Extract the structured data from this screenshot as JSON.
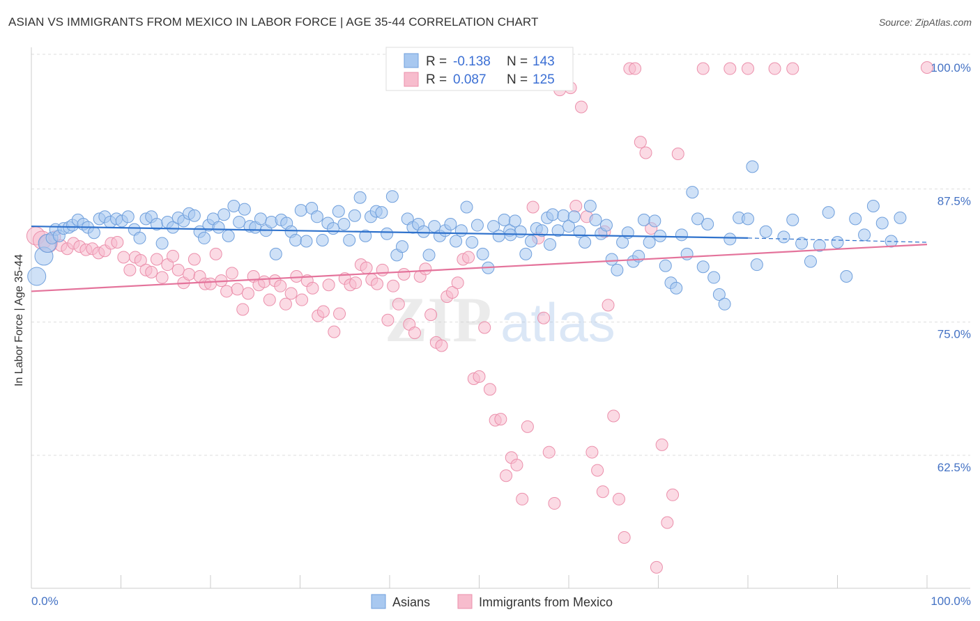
{
  "title": "ASIAN VS IMMIGRANTS FROM MEXICO IN LABOR FORCE | AGE 35-44 CORRELATION CHART",
  "source": "Source: ZipAtlas.com",
  "colors": {
    "asian_fill": "#a8c8f0",
    "asian_stroke": "#6f9fdc",
    "asian_line": "#2f72cc",
    "mexico_fill": "#f7bccd",
    "mexico_stroke": "#eb8fab",
    "mexico_line": "#e4739b",
    "axis_label": "#4472c4",
    "grid": "#dddddd"
  },
  "legend": {
    "r_label": "R =",
    "n_label": "N =",
    "rows": [
      {
        "r": "-0.138",
        "n": "143",
        "series": "asians"
      },
      {
        "r": "0.087",
        "n": "125",
        "series": "mexico"
      }
    ]
  },
  "bottom_legend": [
    "Asians",
    "Immigrants from Mexico"
  ],
  "chart_data": {
    "type": "scatter",
    "title": "ASIAN VS IMMIGRANTS FROM MEXICO IN LABOR FORCE | AGE 35-44 CORRELATION CHART",
    "xlabel": "",
    "ylabel": "In Labor Force | Age 35-44",
    "x_tick_labels": [
      "0.0%",
      "100.0%"
    ],
    "y_tick_labels": [
      "100.0%",
      "87.5%",
      "75.0%",
      "62.5%"
    ],
    "y_ticks": [
      100.0,
      87.5,
      75.0,
      62.5
    ],
    "xlim": [
      0,
      100
    ],
    "ylim": [
      52.5,
      101.5
    ],
    "grid": true,
    "legend_position": "top-center",
    "series": [
      {
        "name": "Asians",
        "r": -0.138,
        "n": 143,
        "trend": {
          "x": [
            0,
            80
          ],
          "y": [
            85.1,
            84.0
          ],
          "dashed_to": [
            100,
            83.6
          ]
        },
        "points": [
          [
            0.6,
            80.4
          ],
          [
            1.4,
            82.3
          ],
          [
            1.8,
            83.5
          ],
          [
            2.3,
            84.0
          ],
          [
            2.7,
            84.8
          ],
          [
            3.1,
            84.2
          ],
          [
            3.6,
            84.9
          ],
          [
            4.2,
            85.0
          ],
          [
            4.6,
            85.2
          ],
          [
            5.2,
            85.7
          ],
          [
            5.8,
            85.3
          ],
          [
            6.3,
            85.0
          ],
          [
            7.0,
            84.5
          ],
          [
            7.6,
            85.8
          ],
          [
            8.2,
            86.0
          ],
          [
            8.8,
            85.5
          ],
          [
            9.5,
            85.8
          ],
          [
            10.1,
            85.6
          ],
          [
            10.8,
            86.0
          ],
          [
            11.5,
            84.8
          ],
          [
            12.1,
            84.0
          ],
          [
            12.8,
            85.8
          ],
          [
            13.4,
            86.0
          ],
          [
            14.0,
            85.3
          ],
          [
            14.6,
            83.5
          ],
          [
            15.2,
            85.5
          ],
          [
            15.8,
            85.0
          ],
          [
            16.4,
            85.9
          ],
          [
            17.0,
            85.6
          ],
          [
            17.6,
            86.3
          ],
          [
            18.2,
            86.1
          ],
          [
            18.8,
            84.6
          ],
          [
            19.3,
            84.0
          ],
          [
            19.8,
            85.2
          ],
          [
            20.3,
            85.8
          ],
          [
            20.9,
            85.0
          ],
          [
            21.5,
            86.2
          ],
          [
            22.0,
            84.2
          ],
          [
            22.6,
            87.0
          ],
          [
            23.2,
            85.5
          ],
          [
            23.8,
            86.7
          ],
          [
            24.4,
            85.1
          ],
          [
            25.0,
            85.0
          ],
          [
            25.6,
            85.8
          ],
          [
            26.2,
            84.7
          ],
          [
            26.8,
            85.5
          ],
          [
            27.3,
            82.5
          ],
          [
            27.9,
            85.7
          ],
          [
            28.5,
            85.4
          ],
          [
            29.0,
            84.6
          ],
          [
            29.5,
            83.8
          ],
          [
            30.1,
            86.6
          ],
          [
            30.7,
            83.7
          ],
          [
            31.3,
            86.8
          ],
          [
            31.9,
            86.0
          ],
          [
            32.5,
            83.8
          ],
          [
            33.1,
            85.4
          ],
          [
            33.7,
            84.9
          ],
          [
            34.3,
            86.5
          ],
          [
            34.9,
            85.3
          ],
          [
            35.5,
            83.8
          ],
          [
            36.1,
            86.1
          ],
          [
            36.7,
            87.8
          ],
          [
            37.3,
            84.2
          ],
          [
            37.9,
            86.0
          ],
          [
            38.5,
            86.5
          ],
          [
            39.1,
            86.4
          ],
          [
            39.7,
            84.4
          ],
          [
            40.3,
            87.9
          ],
          [
            40.8,
            82.4
          ],
          [
            41.4,
            83.2
          ],
          [
            42.0,
            85.8
          ],
          [
            42.6,
            85.0
          ],
          [
            43.2,
            85.3
          ],
          [
            43.8,
            84.6
          ],
          [
            44.4,
            82.4
          ],
          [
            45.0,
            85.1
          ],
          [
            45.6,
            84.2
          ],
          [
            46.2,
            84.7
          ],
          [
            46.8,
            85.3
          ],
          [
            47.4,
            83.7
          ],
          [
            48.0,
            84.7
          ],
          [
            48.6,
            86.9
          ],
          [
            49.2,
            83.6
          ],
          [
            49.8,
            85.2
          ],
          [
            50.4,
            82.5
          ],
          [
            51.0,
            81.2
          ],
          [
            51.6,
            85.1
          ],
          [
            52.2,
            84.2
          ],
          [
            52.8,
            85.7
          ],
          [
            53.4,
            84.7
          ],
          [
            54.0,
            85.6
          ],
          [
            54.6,
            84.6
          ],
          [
            55.2,
            82.5
          ],
          [
            55.8,
            83.7
          ],
          [
            56.4,
            84.9
          ],
          [
            57.0,
            84.7
          ],
          [
            57.6,
            85.9
          ],
          [
            58.2,
            86.2
          ],
          [
            58.8,
            84.7
          ],
          [
            59.4,
            86.1
          ],
          [
            60.0,
            85.1
          ],
          [
            60.6,
            86.0
          ],
          [
            61.2,
            84.6
          ],
          [
            61.8,
            83.6
          ],
          [
            62.4,
            87.0
          ],
          [
            63.0,
            85.7
          ],
          [
            63.6,
            84.4
          ],
          [
            64.2,
            85.2
          ],
          [
            64.8,
            82.0
          ],
          [
            65.4,
            81.0
          ],
          [
            66.0,
            83.6
          ],
          [
            66.6,
            84.5
          ],
          [
            67.2,
            81.8
          ],
          [
            67.8,
            82.3
          ],
          [
            68.4,
            85.7
          ],
          [
            69.0,
            83.6
          ],
          [
            69.6,
            85.6
          ],
          [
            70.2,
            84.2
          ],
          [
            70.8,
            81.4
          ],
          [
            71.4,
            79.8
          ],
          [
            72.0,
            79.3
          ],
          [
            72.6,
            84.3
          ],
          [
            73.2,
            82.5
          ],
          [
            73.8,
            88.3
          ],
          [
            74.4,
            85.8
          ],
          [
            75.0,
            81.3
          ],
          [
            75.5,
            85.3
          ],
          [
            76.2,
            80.3
          ],
          [
            76.8,
            78.7
          ],
          [
            77.4,
            77.8
          ],
          [
            78.0,
            83.9
          ],
          [
            79.0,
            85.9
          ],
          [
            80.0,
            85.8
          ],
          [
            81.0,
            81.5
          ],
          [
            82.0,
            84.6
          ],
          [
            84.0,
            84.1
          ],
          [
            85.0,
            85.7
          ],
          [
            86.0,
            83.5
          ],
          [
            87.0,
            81.8
          ],
          [
            88.0,
            83.3
          ],
          [
            89.0,
            86.4
          ],
          [
            90.0,
            83.6
          ],
          [
            91.0,
            80.4
          ],
          [
            92.0,
            85.8
          ],
          [
            93.0,
            84.3
          ],
          [
            94.0,
            87.0
          ],
          [
            95.0,
            85.4
          ],
          [
            96.0,
            83.7
          ],
          [
            97.0,
            85.9
          ],
          [
            53.5,
            84.3
          ],
          [
            57.9,
            83.4
          ],
          [
            80.5,
            90.7
          ]
        ]
      },
      {
        "name": "Immigrants from Mexico",
        "r": 0.087,
        "n": 125,
        "trend": {
          "x": [
            0,
            100
          ],
          "y": [
            79.0,
            83.4
          ]
        },
        "points": [
          [
            0.5,
            84.2
          ],
          [
            1.2,
            83.8
          ],
          [
            1.9,
            83.5
          ],
          [
            2.6,
            84.1
          ],
          [
            3.3,
            83.3
          ],
          [
            4.0,
            83.0
          ],
          [
            4.7,
            83.5
          ],
          [
            5.4,
            83.2
          ],
          [
            6.1,
            82.9
          ],
          [
            6.8,
            83.0
          ],
          [
            7.5,
            82.6
          ],
          [
            8.2,
            82.8
          ],
          [
            8.9,
            83.5
          ],
          [
            9.6,
            83.6
          ],
          [
            10.3,
            82.2
          ],
          [
            11.0,
            81.0
          ],
          [
            11.6,
            82.2
          ],
          [
            12.2,
            81.9
          ],
          [
            12.8,
            81.0
          ],
          [
            13.4,
            80.8
          ],
          [
            14.0,
            82.0
          ],
          [
            14.6,
            80.3
          ],
          [
            15.2,
            81.5
          ],
          [
            15.8,
            82.3
          ],
          [
            16.4,
            81.0
          ],
          [
            17.0,
            79.8
          ],
          [
            17.6,
            80.6
          ],
          [
            18.2,
            82.0
          ],
          [
            18.8,
            80.4
          ],
          [
            19.4,
            79.7
          ],
          [
            20.0,
            79.7
          ],
          [
            20.6,
            82.5
          ],
          [
            21.2,
            80.0
          ],
          [
            21.8,
            79.0
          ],
          [
            22.4,
            80.7
          ],
          [
            23.0,
            79.2
          ],
          [
            23.6,
            77.3
          ],
          [
            24.2,
            78.8
          ],
          [
            24.8,
            80.4
          ],
          [
            25.4,
            79.6
          ],
          [
            26.0,
            79.9
          ],
          [
            26.6,
            78.2
          ],
          [
            27.2,
            80.0
          ],
          [
            27.8,
            79.5
          ],
          [
            28.4,
            77.8
          ],
          [
            29.0,
            78.8
          ],
          [
            29.6,
            80.4
          ],
          [
            30.2,
            78.2
          ],
          [
            30.8,
            80.0
          ],
          [
            31.4,
            79.3
          ],
          [
            32.0,
            76.7
          ],
          [
            32.6,
            77.1
          ],
          [
            33.2,
            79.6
          ],
          [
            33.8,
            75.2
          ],
          [
            34.4,
            76.9
          ],
          [
            35.0,
            80.2
          ],
          [
            35.6,
            79.6
          ],
          [
            36.2,
            79.8
          ],
          [
            36.8,
            81.5
          ],
          [
            37.4,
            81.2
          ],
          [
            38.0,
            80.1
          ],
          [
            38.6,
            79.7
          ],
          [
            39.2,
            81.0
          ],
          [
            39.8,
            76.3
          ],
          [
            40.4,
            79.5
          ],
          [
            41.0,
            77.8
          ],
          [
            41.6,
            80.6
          ],
          [
            42.2,
            75.9
          ],
          [
            42.8,
            75.1
          ],
          [
            43.4,
            80.4
          ],
          [
            44.0,
            81.1
          ],
          [
            44.6,
            76.8
          ],
          [
            45.2,
            74.2
          ],
          [
            45.8,
            73.9
          ],
          [
            46.4,
            78.5
          ],
          [
            47.0,
            78.9
          ],
          [
            47.6,
            79.8
          ],
          [
            48.2,
            82.0
          ],
          [
            48.8,
            82.2
          ],
          [
            49.4,
            70.8
          ],
          [
            50.0,
            71.0
          ],
          [
            50.6,
            75.6
          ],
          [
            51.2,
            69.8
          ],
          [
            51.8,
            66.9
          ],
          [
            52.4,
            67.0
          ],
          [
            53.0,
            61.7
          ],
          [
            53.6,
            63.4
          ],
          [
            54.2,
            62.7
          ],
          [
            54.8,
            59.5
          ],
          [
            55.4,
            66.3
          ],
          [
            56.0,
            86.9
          ],
          [
            56.6,
            84.0
          ],
          [
            57.2,
            76.5
          ],
          [
            57.8,
            63.9
          ],
          [
            58.4,
            59.1
          ],
          [
            59.0,
            97.9
          ],
          [
            59.6,
            99.9
          ],
          [
            60.2,
            98.1
          ],
          [
            60.8,
            87.0
          ],
          [
            61.4,
            96.3
          ],
          [
            62.0,
            86.0
          ],
          [
            62.6,
            63.9
          ],
          [
            63.2,
            62.2
          ],
          [
            63.8,
            60.2
          ],
          [
            64.4,
            77.7
          ],
          [
            65.0,
            67.3
          ],
          [
            65.6,
            59.5
          ],
          [
            66.2,
            55.9
          ],
          [
            66.8,
            99.9
          ],
          [
            67.4,
            99.9
          ],
          [
            68.0,
            93.0
          ],
          [
            68.6,
            92.0
          ],
          [
            69.2,
            84.9
          ],
          [
            69.8,
            53.1
          ],
          [
            70.4,
            64.6
          ],
          [
            71.0,
            57.3
          ],
          [
            71.6,
            59.9
          ],
          [
            72.2,
            91.9
          ],
          [
            75.0,
            99.9
          ],
          [
            78.0,
            99.9
          ],
          [
            80.0,
            99.9
          ],
          [
            83.0,
            99.9
          ],
          [
            85.0,
            99.9
          ],
          [
            64.0,
            84.6
          ],
          [
            100.0,
            100.0
          ]
        ]
      }
    ]
  }
}
